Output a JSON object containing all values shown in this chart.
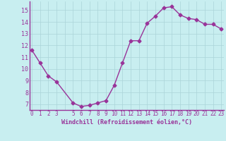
{
  "x": [
    0,
    1,
    2,
    3,
    5,
    6,
    7,
    8,
    9,
    10,
    11,
    12,
    13,
    14,
    15,
    16,
    17,
    18,
    19,
    20,
    21,
    22,
    23
  ],
  "y": [
    11.6,
    10.5,
    9.4,
    8.9,
    7.1,
    6.8,
    6.9,
    7.1,
    7.3,
    8.6,
    10.5,
    12.4,
    12.4,
    13.9,
    14.5,
    15.2,
    15.3,
    14.6,
    14.3,
    14.2,
    13.8,
    13.8,
    13.4
  ],
  "line_color": "#993399",
  "marker": "D",
  "marker_size": 2.5,
  "bg_color": "#c8eef0",
  "grid_color": "#aad4d8",
  "xlabel": "Windchill (Refroidissement éolien,°C)",
  "xlabel_color": "#993399",
  "ylabel_ticks": [
    7,
    8,
    9,
    10,
    11,
    12,
    13,
    14,
    15
  ],
  "ylim": [
    6.5,
    15.75
  ],
  "xlim": [
    -0.3,
    23.3
  ],
  "tick_color": "#993399",
  "spine_color": "#993399",
  "tick_fontsize": 5.5,
  "xlabel_fontsize": 6.0,
  "linewidth": 1.0
}
